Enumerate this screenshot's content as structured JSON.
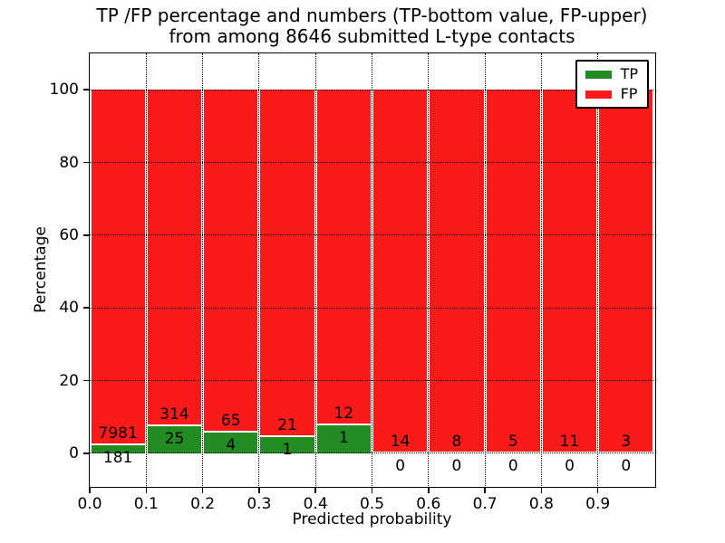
{
  "chart_data": {
    "type": "bar",
    "stacked": true,
    "title_line1": "TP /FP percentage and numbers (TP-bottom value, FP-upper)",
    "title_line2": "from among 8646 submitted L-type contacts",
    "xlabel": "Predicted probability",
    "ylabel": "Percentage",
    "xlim": [
      0.0,
      1.0
    ],
    "ylim": [
      -9,
      110
    ],
    "x_tick_labels": [
      "0.0",
      "0.1",
      "0.2",
      "0.3",
      "0.4",
      "0.5",
      "0.6",
      "0.7",
      "0.8",
      "0.9"
    ],
    "y_tick_values": [
      0,
      20,
      40,
      60,
      80,
      100
    ],
    "y_tick_labels": [
      "0",
      "20",
      "40",
      "60",
      "80",
      "100"
    ],
    "grid_style": "dotted",
    "bin_edges": [
      0.0,
      0.1,
      0.2,
      0.3,
      0.4,
      0.5,
      0.6,
      0.7,
      0.8,
      0.9,
      1.0
    ],
    "bar_total_percent": 100,
    "series": [
      {
        "name": "TP",
        "color": "#228b22",
        "counts": [
          181,
          25,
          4,
          1,
          1,
          0,
          0,
          0,
          0,
          0
        ]
      },
      {
        "name": "FP",
        "color": "#fa1a1a",
        "counts": [
          7981,
          314,
          65,
          21,
          12,
          14,
          8,
          5,
          11,
          3
        ]
      }
    ],
    "tp_percent_of_bin": [
      2.2,
      7.4,
      5.8,
      4.5,
      7.7,
      0.0,
      0.0,
      0.0,
      0.0,
      0.0
    ],
    "legend_position": "upper right",
    "legend": [
      {
        "label": "TP",
        "color": "#228b22"
      },
      {
        "label": "FP",
        "color": "#fa1a1a"
      }
    ],
    "colors": {
      "tp_green": "#228b22",
      "fp_red": "#fa1a1a",
      "grid": "#000000",
      "text": "#000000",
      "background": "#ffffff"
    }
  }
}
